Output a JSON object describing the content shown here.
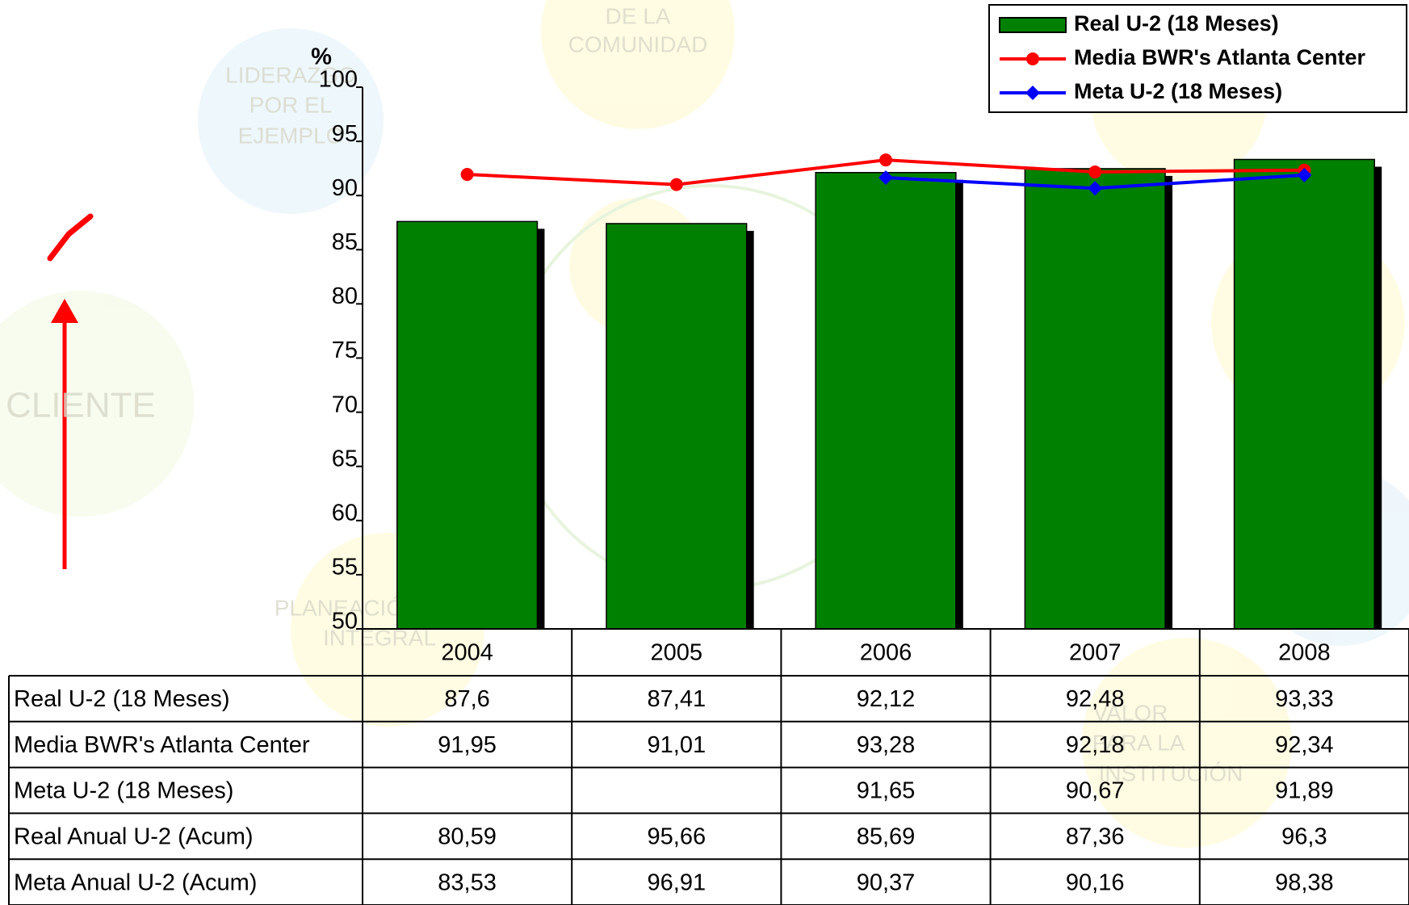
{
  "chart_data": {
    "type": "bar",
    "y_label": "%",
    "categories": [
      "2004",
      "2005",
      "2006",
      "2007",
      "2008"
    ],
    "ylim": [
      50,
      100
    ],
    "yticks": [
      50,
      55,
      60,
      65,
      70,
      75,
      80,
      85,
      90,
      95,
      100
    ],
    "series": [
      {
        "name": "Real U-2 (18 Meses)",
        "type": "bar",
        "color": "#008000",
        "values": [
          87.6,
          87.41,
          92.12,
          92.48,
          93.33
        ],
        "value_labels": [
          "87,6",
          "87,41",
          "92,12",
          "92,48",
          "93,33"
        ]
      },
      {
        "name": "Media BWR's Atlanta Center",
        "type": "line",
        "marker": "circle",
        "color": "#ff0000",
        "values": [
          91.95,
          91.01,
          93.28,
          92.18,
          92.34
        ],
        "value_labels": [
          "91,95",
          "91,01",
          "93,28",
          "92,18",
          "92,34"
        ]
      },
      {
        "name": "Meta U-2 (18 Meses)",
        "type": "line",
        "marker": "diamond",
        "color": "#0000ff",
        "values": [
          null,
          null,
          91.65,
          90.67,
          91.89
        ],
        "value_labels": [
          null,
          null,
          "91,65",
          "90,67",
          "91,89"
        ]
      }
    ],
    "table_rows": [
      {
        "name": "Real Anual U-2 (Acum)",
        "cells": [
          "80,59",
          "95,66",
          "85,69",
          "87,36",
          "96,3"
        ]
      },
      {
        "name": "Meta Anual U-2 (Acum)",
        "cells": [
          "83,53",
          "96,91",
          "90,37",
          "90,16",
          "98,38"
        ]
      }
    ],
    "background_texts": [
      "DE LA",
      "COMUNIDAD",
      "LIDERAZGO",
      "POR EL",
      "EJEMPLO",
      "CLIENTE",
      "PLANEACIÓN",
      "INTEGRAL",
      "VALOR",
      "PARA LA",
      "INSTITUCIÓN"
    ]
  }
}
